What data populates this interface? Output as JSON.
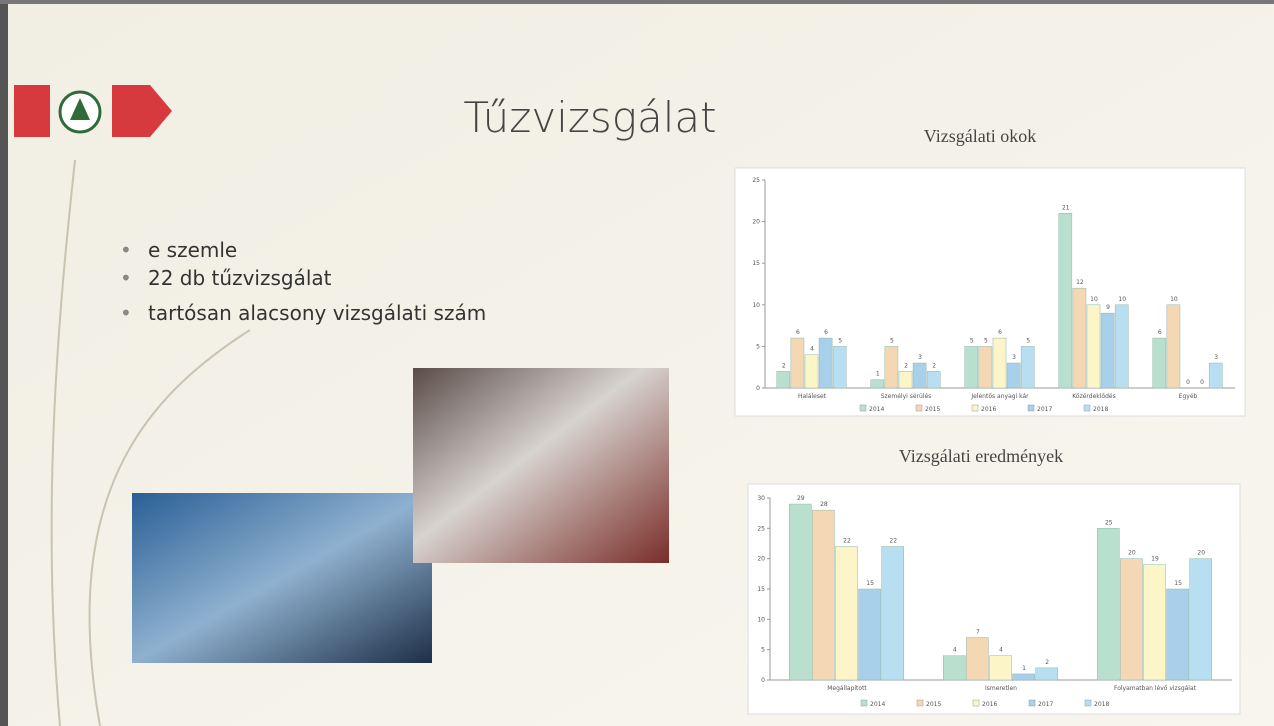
{
  "slide": {
    "title": "Tűzvizsgálat",
    "bullets": [
      "e szemle",
      "22 db tűzvizsgálat",
      "tartósan alacsony vizsgálati szám"
    ]
  },
  "chart_data": [
    {
      "type": "bar",
      "title": "Vizsgálati okok",
      "categories": [
        "Haláleset",
        "Személyi sérülés",
        "Jelentős anyagi kár",
        "Közérdeklődés",
        "Egyéb"
      ],
      "series": [
        {
          "name": "2014",
          "color": "#b9e0cf",
          "values": [
            2,
            1,
            5,
            21,
            6
          ]
        },
        {
          "name": "2015",
          "color": "#f4d8b4",
          "values": [
            6,
            5,
            5,
            12,
            10
          ]
        },
        {
          "name": "2016",
          "color": "#fbf5c8",
          "values": [
            4,
            2,
            6,
            10,
            0
          ]
        },
        {
          "name": "2017",
          "color": "#a8d0ea",
          "values": [
            6,
            3,
            3,
            9,
            0
          ]
        },
        {
          "name": "2018",
          "color": "#b8def2",
          "values": [
            5,
            2,
            5,
            10,
            3
          ]
        }
      ],
      "ylim": [
        0,
        25
      ],
      "yticks": [
        0,
        5,
        10,
        15,
        20,
        25
      ],
      "legend": "bottom"
    },
    {
      "type": "bar",
      "title": "Vizsgálati eredmények",
      "categories": [
        "Megállapított",
        "Ismeretlen",
        "Folyamatban lévő vizsgálat"
      ],
      "series": [
        {
          "name": "2014",
          "color": "#b9e0cf",
          "values": [
            29,
            4,
            25
          ]
        },
        {
          "name": "2015",
          "color": "#f4d8b4",
          "values": [
            28,
            7,
            20
          ]
        },
        {
          "name": "2016",
          "color": "#fbf5c8",
          "values": [
            22,
            4,
            19
          ]
        },
        {
          "name": "2017",
          "color": "#a8d0ea",
          "values": [
            15,
            1,
            15
          ]
        },
        {
          "name": "2018",
          "color": "#b8def2",
          "values": [
            22,
            2,
            20
          ]
        }
      ],
      "ylim": [
        0,
        30
      ],
      "yticks": [
        0,
        5,
        10,
        15,
        20,
        25,
        30
      ],
      "legend": "bottom"
    }
  ]
}
